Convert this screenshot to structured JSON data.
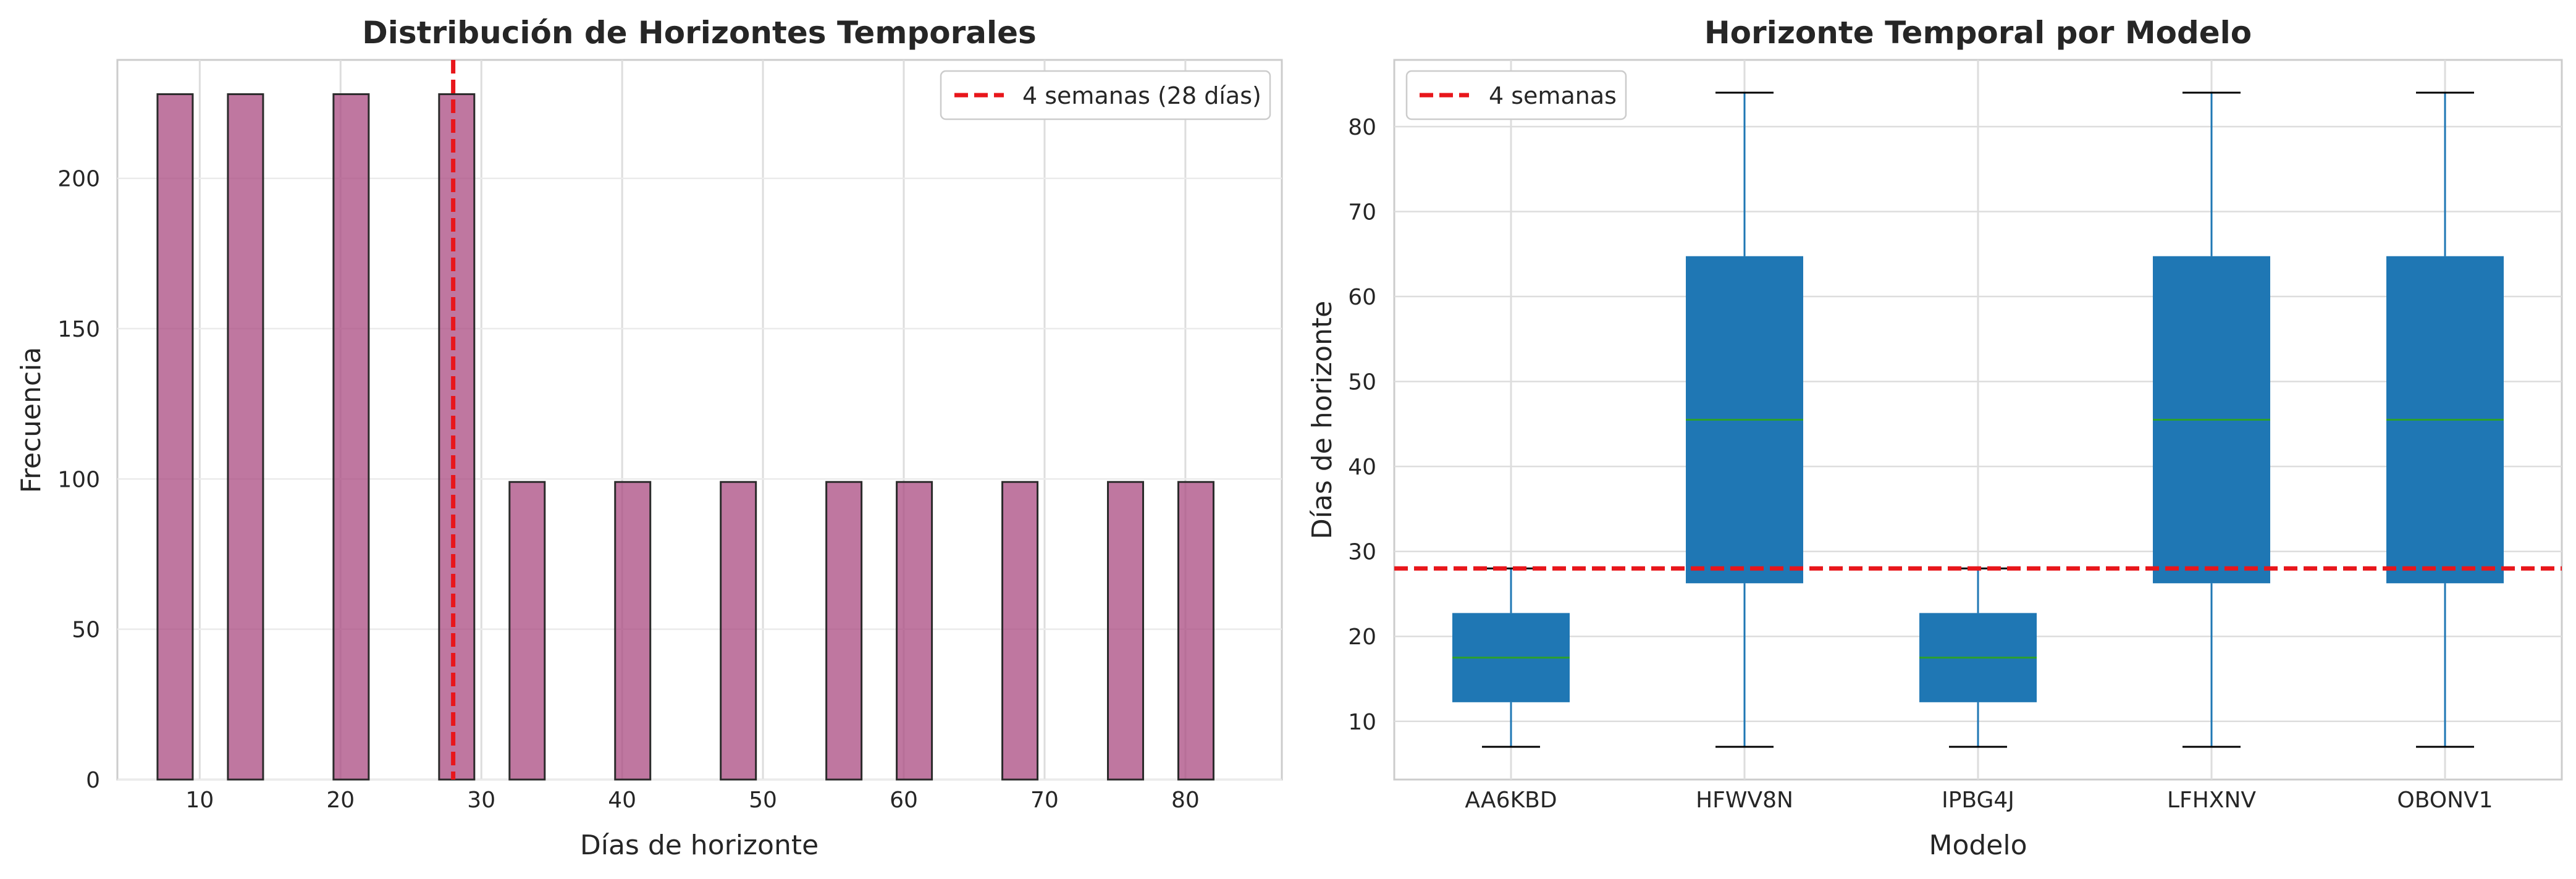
{
  "chart_data": [
    {
      "type": "bar",
      "title": "Distribución de Horizontes Temporales",
      "xlabel": "Días de horizonte",
      "ylabel": "Frecuencia",
      "xlim": [
        4.15,
        86.85
      ],
      "ylim": [
        0,
        239.4
      ],
      "xticks": [
        10,
        20,
        30,
        40,
        50,
        60,
        70,
        80
      ],
      "yticks": [
        0,
        50,
        100,
        150,
        200
      ],
      "grid": true,
      "bar_width": 2.5,
      "bar_color": "#aa4a80",
      "bar_edge_color": "#2b2b2b",
      "bars": [
        {
          "x0": 7.0,
          "value": 228
        },
        {
          "x0": 12.0,
          "value": 228
        },
        {
          "x0": 19.5,
          "value": 228
        },
        {
          "x0": 27.0,
          "value": 228
        },
        {
          "x0": 32.0,
          "value": 99
        },
        {
          "x0": 39.5,
          "value": 99
        },
        {
          "x0": 47.0,
          "value": 99
        },
        {
          "x0": 54.5,
          "value": 99
        },
        {
          "x0": 59.5,
          "value": 99
        },
        {
          "x0": 67.0,
          "value": 99
        },
        {
          "x0": 74.5,
          "value": 99
        },
        {
          "x0": 79.5,
          "value": 99
        }
      ],
      "reference_line": {
        "axis": "x",
        "value": 28,
        "color": "#e8161b",
        "style": "dashed"
      },
      "legend": {
        "position": "top-right",
        "entries": [
          "4 semanas (28 días)"
        ]
      }
    },
    {
      "type": "box",
      "title": "Horizonte Temporal por Modelo",
      "xlabel": "Modelo",
      "ylabel": "Días de horizonte",
      "ylim": [
        3.15,
        87.85
      ],
      "yticks": [
        10,
        20,
        30,
        40,
        50,
        60,
        70,
        80
      ],
      "grid": true,
      "box_color": "#1f77b4",
      "median_color": "#2ca02c",
      "categories": [
        "AA6KBD",
        "HFWV8N",
        "IPBG4J",
        "LFHXNV",
        "OBONV1"
      ],
      "boxes": [
        {
          "whislo": 7,
          "q1": 12.25,
          "med": 17.5,
          "q3": 22.75,
          "whishi": 28
        },
        {
          "whislo": 7,
          "q1": 26.25,
          "med": 45.5,
          "q3": 64.75,
          "whishi": 84
        },
        {
          "whislo": 7,
          "q1": 12.25,
          "med": 17.5,
          "q3": 22.75,
          "whishi": 28
        },
        {
          "whislo": 7,
          "q1": 26.25,
          "med": 45.5,
          "q3": 64.75,
          "whishi": 84
        },
        {
          "whislo": 7,
          "q1": 26.25,
          "med": 45.5,
          "q3": 64.75,
          "whishi": 84
        }
      ],
      "reference_line": {
        "axis": "y",
        "value": 28,
        "color": "#e8161b",
        "style": "dashed"
      },
      "legend": {
        "position": "top-left",
        "entries": [
          "4 semanas"
        ]
      }
    }
  ]
}
